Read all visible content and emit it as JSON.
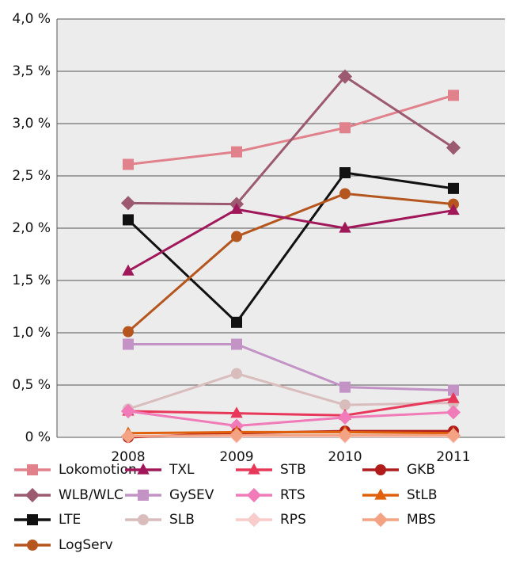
{
  "chart_data": {
    "type": "line",
    "categories": [
      "2008",
      "2009",
      "2010",
      "2011"
    ],
    "ylim": [
      0,
      4
    ],
    "yticks": [
      {
        "value": 0,
        "label": "0 %"
      },
      {
        "value": 0.5,
        "label": "0,5 %"
      },
      {
        "value": 1,
        "label": "1,0 %"
      },
      {
        "value": 1.5,
        "label": "1,5 %"
      },
      {
        "value": 2,
        "label": "2,0 %"
      },
      {
        "value": 2.5,
        "label": "2,5 %"
      },
      {
        "value": 3,
        "label": "3,0 %"
      },
      {
        "value": 3.5,
        "label": "3,5 %"
      },
      {
        "value": 4,
        "label": "4,0 %"
      }
    ],
    "grid": true,
    "legend": "bottom",
    "series": [
      {
        "name": "Lokomotion",
        "color": "#e0818c",
        "marker": "square",
        "values": [
          2.61,
          2.73,
          2.96,
          3.27
        ]
      },
      {
        "name": "WLB/WLC",
        "color": "#9c5a70",
        "marker": "diamond",
        "values": [
          2.24,
          2.23,
          3.45,
          2.77
        ]
      },
      {
        "name": "LTE",
        "color": "#111111",
        "marker": "square",
        "values": [
          2.08,
          1.1,
          2.53,
          2.38
        ]
      },
      {
        "name": "LogServ",
        "color": "#b5561f",
        "marker": "circle",
        "values": [
          1.01,
          1.92,
          2.33,
          2.23
        ]
      },
      {
        "name": "TXL",
        "color": "#a0185a",
        "marker": "triangle",
        "values": [
          1.59,
          2.18,
          2.0,
          2.17
        ]
      },
      {
        "name": "GySEV",
        "color": "#c393c6",
        "marker": "square",
        "values": [
          0.89,
          0.89,
          0.48,
          0.45
        ]
      },
      {
        "name": "SLB",
        "color": "#d9bdbd",
        "marker": "circle",
        "values": [
          0.27,
          0.61,
          0.31,
          0.33
        ]
      },
      {
        "name": "STB",
        "color": "#e8385a",
        "marker": "triangle",
        "values": [
          0.25,
          0.23,
          0.21,
          0.37
        ]
      },
      {
        "name": "RTS",
        "color": "#f07bb8",
        "marker": "diamond",
        "values": [
          0.25,
          0.11,
          0.19,
          0.24
        ]
      },
      {
        "name": "RPS",
        "color": "#f9cccc",
        "marker": "diamond",
        "values": [
          0.01,
          0.01,
          0.01,
          0.01
        ]
      },
      {
        "name": "GKB",
        "color": "#b01c1c",
        "marker": "circle",
        "values": [
          0.0,
          0.04,
          0.06,
          0.06
        ]
      },
      {
        "name": "StLB",
        "color": "#e0600c",
        "marker": "triangle",
        "values": [
          0.04,
          0.05,
          0.05,
          0.04
        ]
      },
      {
        "name": "MBS",
        "color": "#f3a383",
        "marker": "diamond",
        "values": [
          0.01,
          0.02,
          0.02,
          0.02
        ]
      }
    ]
  }
}
